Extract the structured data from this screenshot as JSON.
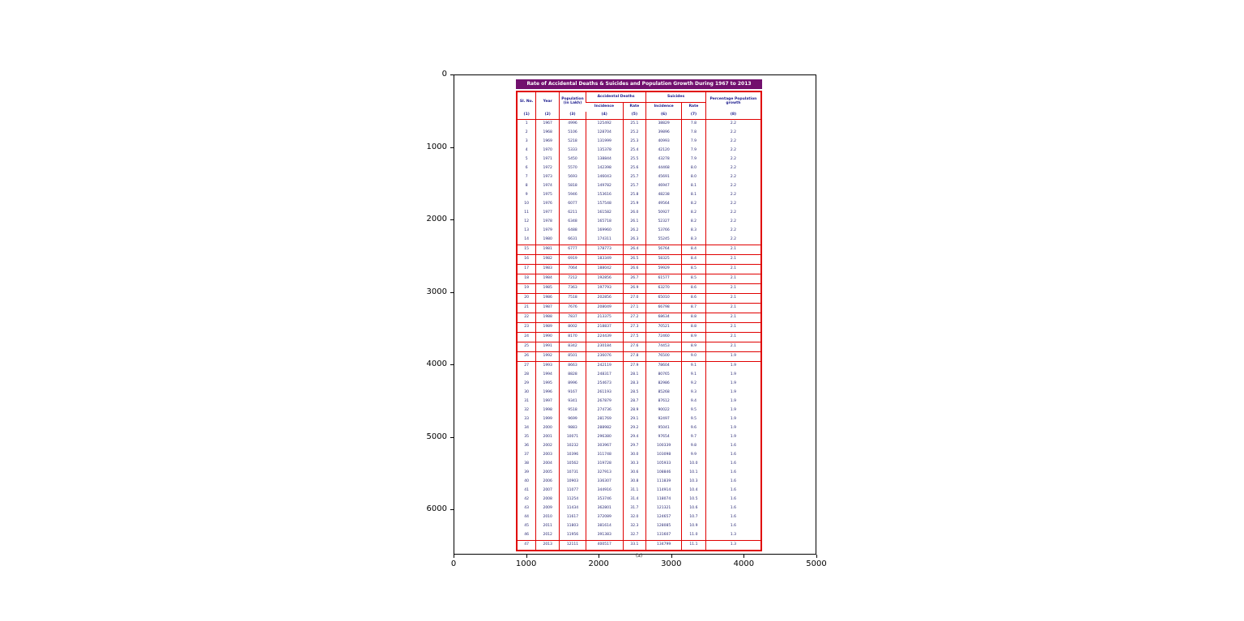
{
  "colors": {
    "title_bg": "#72106e",
    "border": "#e00000",
    "header_text": "#1a1a8c",
    "body_text": "#1f1f6e"
  },
  "figure": {
    "x_ticks": [
      "0",
      "1000",
      "2000",
      "3000",
      "4000",
      "5000"
    ],
    "y_ticks": [
      "0",
      "1000",
      "2000",
      "3000",
      "4000",
      "5000",
      "6000"
    ]
  },
  "table": {
    "caption": "(a)",
    "header": {
      "sl_no": "Sl. No.",
      "year": "Year",
      "population": "Population (in Lakh)",
      "accidental_deaths": "Accidental Deaths",
      "suicides": "Suicides",
      "incidence": "Incidence",
      "rate": "Rate",
      "pct_growth": "Percentage Population growth"
    },
    "col_numbers": [
      "(1)",
      "(2)",
      "(3)",
      "(4)",
      "(5)",
      "(6)",
      "(7)",
      "(8)"
    ]
  },
  "chart_data": {
    "type": "table",
    "title": "Rate of Accidental Deaths & Suicides and Population Growth During 1967 to 2013",
    "columns": [
      "Sl. No.",
      "Year",
      "Population (in Lakh)",
      "Accidental Deaths Incidence",
      "Accidental Deaths Rate",
      "Suicides Incidence",
      "Suicides Rate",
      "Percentage Population growth"
    ],
    "rows": [
      [
        1,
        1967,
        4996,
        125492,
        "25.1",
        38829,
        "7.8",
        "2.2"
      ],
      [
        2,
        1968,
        5106,
        128704,
        "25.2",
        39896,
        "7.8",
        "2.2"
      ],
      [
        3,
        1969,
        5218,
        131999,
        "25.3",
        40993,
        "7.9",
        "2.2"
      ],
      [
        4,
        1970,
        5333,
        135378,
        "25.4",
        42120,
        "7.9",
        "2.2"
      ],
      [
        5,
        1971,
        5450,
        138844,
        "25.5",
        43278,
        "7.9",
        "2.2"
      ],
      [
        6,
        1972,
        5570,
        142398,
        "25.6",
        44468,
        "8.0",
        "2.2"
      ],
      [
        7,
        1973,
        5693,
        146043,
        "25.7",
        45691,
        "8.0",
        "2.2"
      ],
      [
        8,
        1974,
        5818,
        149782,
        "25.7",
        46947,
        "8.1",
        "2.2"
      ],
      [
        9,
        1975,
        5946,
        153616,
        "25.8",
        48238,
        "8.1",
        "2.2"
      ],
      [
        10,
        1976,
        6077,
        157548,
        "25.9",
        49564,
        "8.2",
        "2.2"
      ],
      [
        11,
        1977,
        6211,
        161582,
        "26.0",
        50927,
        "8.2",
        "2.2"
      ],
      [
        12,
        1978,
        6348,
        165718,
        "26.1",
        52327,
        "8.2",
        "2.2"
      ],
      [
        13,
        1979,
        6488,
        169960,
        "26.2",
        53766,
        "8.3",
        "2.2"
      ],
      [
        14,
        1980,
        6631,
        174311,
        "26.3",
        55245,
        "8.3",
        "2.2"
      ],
      [
        15,
        1981,
        6777,
        178773,
        "26.4",
        56764,
        "8.4",
        "2.1"
      ],
      [
        16,
        1982,
        6919,
        183349,
        "26.5",
        58325,
        "8.4",
        "2.1"
      ],
      [
        17,
        1983,
        7064,
        188042,
        "26.6",
        59929,
        "8.5",
        "2.1"
      ],
      [
        18,
        1984,
        7212,
        192856,
        "26.7",
        61577,
        "8.5",
        "2.1"
      ],
      [
        19,
        1985,
        7363,
        197793,
        "26.9",
        63270,
        "8.6",
        "2.1"
      ],
      [
        20,
        1986,
        7518,
        202856,
        "27.0",
        65010,
        "8.6",
        "2.1"
      ],
      [
        21,
        1987,
        7676,
        208049,
        "27.1",
        66798,
        "8.7",
        "2.1"
      ],
      [
        22,
        1988,
        7837,
        213375,
        "27.2",
        68634,
        "8.8",
        "2.1"
      ],
      [
        23,
        1989,
        8002,
        218837,
        "27.3",
        70521,
        "8.8",
        "2.1"
      ],
      [
        24,
        1990,
        8170,
        224439,
        "27.5",
        72460,
        "8.9",
        "2.1"
      ],
      [
        25,
        1991,
        8342,
        230184,
        "27.6",
        74453,
        "8.9",
        "2.1"
      ],
      [
        26,
        1992,
        8501,
        236076,
        "27.8",
        76500,
        "9.0",
        "1.9"
      ],
      [
        27,
        1993,
        8663,
        242119,
        "27.9",
        78604,
        "9.1",
        "1.9"
      ],
      [
        28,
        1994,
        8828,
        248317,
        "28.1",
        80765,
        "9.1",
        "1.9"
      ],
      [
        29,
        1995,
        8996,
        254673,
        "28.3",
        82986,
        "9.2",
        "1.9"
      ],
      [
        30,
        1996,
        9167,
        261193,
        "28.5",
        85268,
        "9.3",
        "1.9"
      ],
      [
        31,
        1997,
        9341,
        267879,
        "28.7",
        87612,
        "9.4",
        "1.9"
      ],
      [
        32,
        1998,
        9518,
        274736,
        "28.9",
        90022,
        "9.5",
        "1.9"
      ],
      [
        33,
        1999,
        9699,
        281769,
        "29.1",
        92497,
        "9.5",
        "1.9"
      ],
      [
        34,
        2000,
        9883,
        288982,
        "29.2",
        95041,
        "9.6",
        "1.9"
      ],
      [
        35,
        2001,
        10071,
        296380,
        "29.4",
        97654,
        "9.7",
        "1.9"
      ],
      [
        36,
        2002,
        10232,
        303967,
        "29.7",
        100339,
        "9.8",
        "1.6"
      ],
      [
        37,
        2003,
        10396,
        311748,
        "30.0",
        103098,
        "9.9",
        "1.6"
      ],
      [
        38,
        2004,
        10562,
        319728,
        "30.3",
        105933,
        "10.0",
        "1.6"
      ],
      [
        39,
        2005,
        10731,
        327913,
        "30.6",
        108846,
        "10.1",
        "1.6"
      ],
      [
        40,
        2006,
        10903,
        336307,
        "30.8",
        111839,
        "10.3",
        "1.6"
      ],
      [
        41,
        2007,
        11077,
        344916,
        "31.1",
        114914,
        "10.4",
        "1.6"
      ],
      [
        42,
        2008,
        11254,
        353746,
        "31.4",
        118074,
        "10.5",
        "1.6"
      ],
      [
        43,
        2009,
        11434,
        362801,
        "31.7",
        121321,
        "10.6",
        "1.6"
      ],
      [
        44,
        2010,
        11617,
        372089,
        "32.0",
        124657,
        "10.7",
        "1.6"
      ],
      [
        45,
        2011,
        11803,
        381614,
        "32.3",
        128085,
        "10.9",
        "1.6"
      ],
      [
        46,
        2012,
        11956,
        391383,
        "32.7",
        131607,
        "11.0",
        "1.3"
      ],
      [
        47,
        2013,
        12111,
        400517,
        "33.1",
        134799,
        "11.1",
        "1.3"
      ]
    ]
  }
}
